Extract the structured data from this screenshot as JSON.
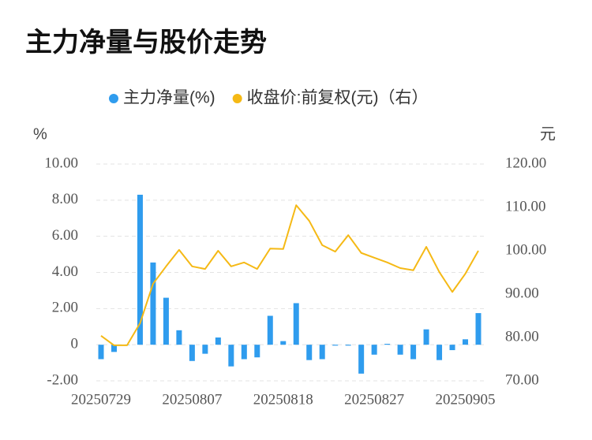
{
  "chart_data": {
    "type": "bar_line",
    "title": "主力净量与股价走势",
    "y_unit": "%",
    "y2_unit": "元",
    "categories": [
      "20250729",
      null,
      null,
      null,
      null,
      null,
      null,
      "20250807",
      null,
      null,
      null,
      null,
      null,
      null,
      "20250818",
      null,
      null,
      null,
      null,
      null,
      null,
      "20250827",
      null,
      null,
      null,
      null,
      null,
      null,
      "20250905",
      null
    ],
    "series": [
      {
        "name": "主力净量(%)",
        "type": "bar",
        "color": "#2f9cee",
        "values": [
          -0.8,
          -0.4,
          0,
          8.3,
          4.55,
          2.6,
          0.8,
          -0.9,
          -0.5,
          0.4,
          -1.2,
          -0.8,
          -0.7,
          1.6,
          0.2,
          2.3,
          -0.85,
          -0.8,
          -0.05,
          -0.05,
          -1.6,
          -0.55,
          0.05,
          -0.55,
          -0.8,
          0.85,
          -0.85,
          -0.3,
          0.3,
          1.75
        ]
      },
      {
        "name": "收盘价:前复权(元)（右）",
        "type": "line",
        "axis": "y2",
        "color": "#f5b915",
        "values": [
          80.4,
          78.2,
          78.2,
          83.3,
          92.4,
          96.4,
          100.2,
          96.4,
          95.8,
          100,
          96.4,
          97.3,
          95.8,
          100.5,
          100.4,
          110.5,
          106.9,
          101.3,
          99.8,
          103.6,
          99.5,
          98.4,
          97.3,
          96,
          95.5,
          100.9,
          95.1,
          90.5,
          94.7,
          100
        ]
      }
    ],
    "ylim": [
      -2,
      10
    ],
    "yticks": [
      {
        "value": -2,
        "label": "-2.00"
      },
      0,
      {
        "value": 2,
        "label": "2.00"
      },
      {
        "value": 4,
        "label": "4.00"
      },
      {
        "value": 6,
        "label": "6.00"
      },
      {
        "value": 8,
        "label": "8.00"
      },
      {
        "value": 10,
        "label": "10.00"
      }
    ],
    "y2lim": [
      70,
      120
    ],
    "y2ticks": [
      {
        "value": 70,
        "label": "70.00"
      },
      {
        "value": 80,
        "label": "80.00"
      },
      {
        "value": 90,
        "label": "90.00"
      },
      {
        "value": 100,
        "label": "100.00"
      },
      {
        "value": 110,
        "label": "110.00"
      },
      {
        "value": 120,
        "label": "120.00"
      }
    ],
    "grid": true
  }
}
